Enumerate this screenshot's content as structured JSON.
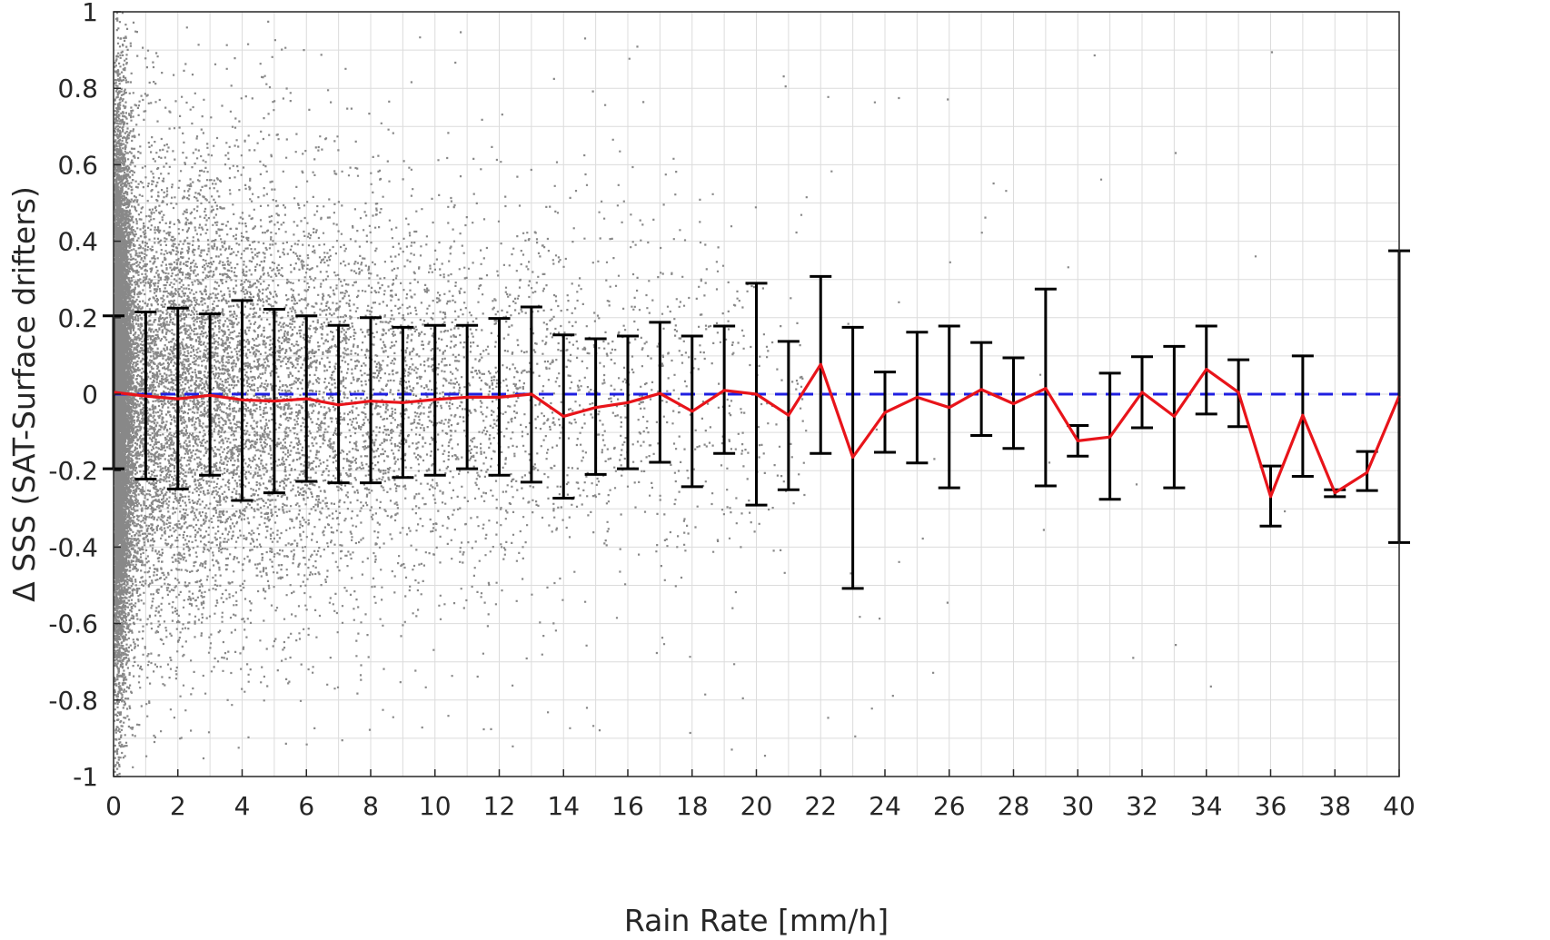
{
  "chart_data": {
    "type": "scatter",
    "xlabel": "Rain Rate [mm/h]",
    "ylabel": "Δ SSS (SAT-Surface drifters)",
    "xlim": [
      0,
      40
    ],
    "ylim": [
      -1,
      1
    ],
    "grid": true,
    "x_ticks": [
      0,
      2,
      4,
      6,
      8,
      10,
      12,
      14,
      16,
      18,
      20,
      22,
      24,
      26,
      28,
      30,
      32,
      34,
      36,
      38,
      40
    ],
    "y_ticks": [
      -1,
      -0.8,
      -0.6,
      -0.4,
      -0.2,
      0,
      0.2,
      0.4,
      0.6,
      0.8,
      1
    ],
    "y_tick_labels": [
      "-1",
      "-0.8",
      "-0.6",
      "-0.4",
      "-0.2",
      "0",
      "0.2",
      "0.4",
      "0.6",
      "0.8",
      "1"
    ],
    "reference_line": {
      "y": 0,
      "style": "dashed",
      "color": "#1f1fe0"
    },
    "scatter_color": "#888888",
    "mean_line_color": "#e8141a",
    "errorbar_color": "#000000",
    "binned_stats": {
      "x": [
        0,
        1,
        2,
        3,
        4,
        5,
        6,
        7,
        8,
        9,
        10,
        11,
        12,
        13,
        14,
        15,
        16,
        17,
        18,
        19,
        20,
        21,
        22,
        23,
        24,
        25,
        26,
        27,
        28,
        29,
        30,
        31,
        32,
        33,
        34,
        35,
        36,
        37,
        38,
        39,
        40
      ],
      "mean": [
        0.005,
        -0.005,
        -0.012,
        -0.003,
        -0.015,
        -0.018,
        -0.012,
        -0.028,
        -0.018,
        -0.022,
        -0.014,
        -0.008,
        -0.008,
        0.0,
        -0.058,
        -0.035,
        -0.022,
        0.002,
        -0.045,
        0.01,
        0.0,
        -0.055,
        0.078,
        -0.165,
        -0.048,
        -0.008,
        -0.035,
        0.012,
        -0.025,
        0.015,
        -0.122,
        -0.112,
        0.005,
        -0.058,
        0.065,
        0.005,
        -0.268,
        -0.055,
        -0.258,
        -0.205,
        -0.005
      ],
      "upper": [
        0.205,
        0.215,
        0.225,
        0.21,
        0.245,
        0.222,
        0.205,
        0.18,
        0.2,
        0.175,
        0.18,
        0.18,
        0.198,
        0.228,
        0.155,
        0.145,
        0.152,
        0.188,
        0.152,
        0.178,
        0.29,
        0.138,
        0.308,
        0.175,
        0.058,
        0.162,
        0.178,
        0.135,
        0.095,
        0.275,
        -0.082,
        0.055,
        0.098,
        0.125,
        0.178,
        0.09,
        -0.188,
        0.1,
        -0.25,
        -0.15,
        0.375
      ],
      "lower": [
        -0.195,
        -0.222,
        -0.248,
        -0.212,
        -0.278,
        -0.258,
        -0.228,
        -0.232,
        -0.232,
        -0.218,
        -0.212,
        -0.195,
        -0.212,
        -0.23,
        -0.272,
        -0.21,
        -0.195,
        -0.178,
        -0.242,
        -0.155,
        -0.29,
        -0.25,
        -0.155,
        -0.508,
        -0.152,
        -0.18,
        -0.245,
        -0.108,
        -0.142,
        -0.24,
        -0.162,
        -0.275,
        -0.088,
        -0.245,
        -0.052,
        -0.085,
        -0.345,
        -0.215,
        -0.268,
        -0.252,
        -0.388
      ]
    }
  }
}
